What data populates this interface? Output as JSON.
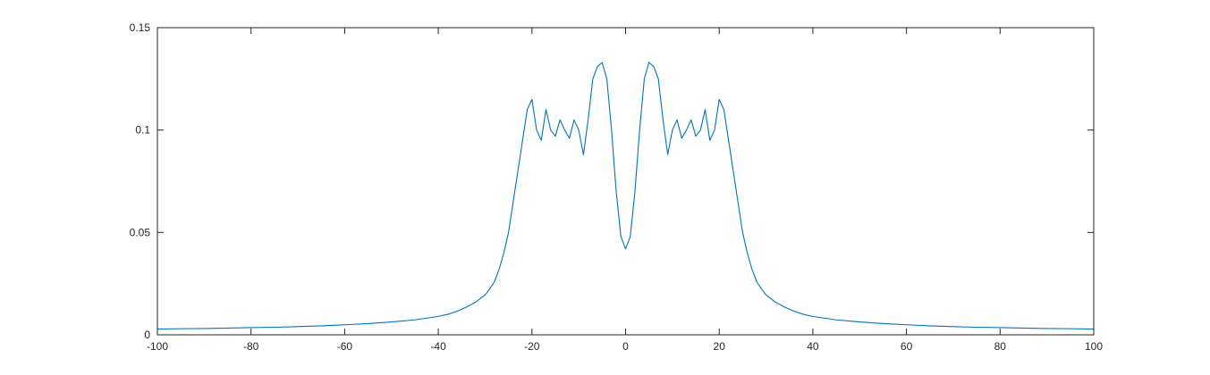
{
  "chart_data": {
    "type": "line",
    "title": "",
    "xlabel": "",
    "ylabel": "",
    "xlim": [
      -100,
      100
    ],
    "ylim": [
      0,
      0.15
    ],
    "grid": false,
    "x_ticks": [
      -100,
      -80,
      -60,
      -40,
      -20,
      0,
      20,
      40,
      60,
      80,
      100
    ],
    "x_tick_labels": [
      "-100",
      "-80",
      "-60",
      "-40",
      "-20",
      "0",
      "20",
      "40",
      "60",
      "80",
      "100"
    ],
    "y_ticks": [
      0,
      0.05,
      0.1,
      0.15
    ],
    "y_tick_labels": [
      "0",
      "0.05",
      "0.1",
      "0.15"
    ],
    "series": [
      {
        "color": "#0072BD",
        "x": [
          -100,
          -95,
          -90,
          -85,
          -80,
          -75,
          -70,
          -65,
          -60,
          -55,
          -50,
          -45,
          -40,
          -38,
          -36,
          -34,
          -32,
          -30,
          -29,
          -28,
          -27,
          -26,
          -25,
          -24,
          -23,
          -22,
          -21,
          -20,
          -19,
          -18,
          -17,
          -16,
          -15,
          -14,
          -13,
          -12,
          -11,
          -10,
          -9,
          -8,
          -7,
          -6,
          -5,
          -4,
          -3,
          -2,
          -1,
          0,
          1,
          2,
          3,
          4,
          5,
          6,
          7,
          8,
          9,
          10,
          11,
          12,
          13,
          14,
          15,
          16,
          17,
          18,
          19,
          20,
          21,
          22,
          23,
          24,
          25,
          26,
          27,
          28,
          29,
          30,
          32,
          34,
          36,
          38,
          40,
          45,
          50,
          55,
          60,
          65,
          70,
          75,
          80,
          85,
          90,
          95,
          100
        ],
        "y": [
          0.0028,
          0.003,
          0.0031,
          0.0033,
          0.0035,
          0.0037,
          0.004,
          0.0044,
          0.0049,
          0.0055,
          0.0063,
          0.0073,
          0.009,
          0.01,
          0.0115,
          0.0135,
          0.016,
          0.0195,
          0.0225,
          0.026,
          0.032,
          0.04,
          0.05,
          0.065,
          0.08,
          0.095,
          0.11,
          0.115,
          0.1,
          0.095,
          0.11,
          0.1,
          0.097,
          0.105,
          0.1,
          0.096,
          0.105,
          0.1,
          0.088,
          0.105,
          0.125,
          0.131,
          0.133,
          0.125,
          0.1,
          0.07,
          0.048,
          0.042,
          0.048,
          0.07,
          0.1,
          0.125,
          0.133,
          0.131,
          0.125,
          0.105,
          0.088,
          0.1,
          0.105,
          0.096,
          0.1,
          0.105,
          0.097,
          0.1,
          0.11,
          0.095,
          0.1,
          0.115,
          0.11,
          0.095,
          0.08,
          0.065,
          0.05,
          0.04,
          0.032,
          0.026,
          0.0225,
          0.0195,
          0.016,
          0.0135,
          0.0115,
          0.01,
          0.009,
          0.0073,
          0.0063,
          0.0055,
          0.0049,
          0.0044,
          0.004,
          0.0037,
          0.0035,
          0.0033,
          0.0031,
          0.003,
          0.0028
        ]
      }
    ]
  }
}
